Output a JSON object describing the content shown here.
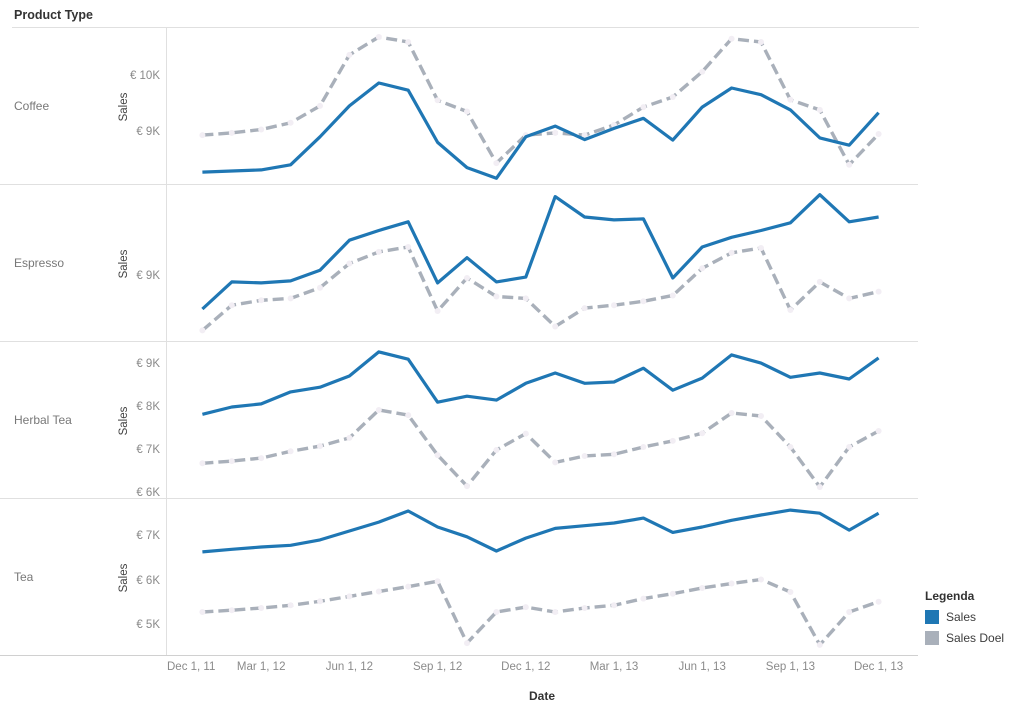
{
  "header": {
    "title": "Product Type"
  },
  "x_axis": {
    "title": "Date",
    "ticks": [
      {
        "label": "Dec 1, 11",
        "m": -1
      },
      {
        "label": "Mar 1, 12",
        "m": 2
      },
      {
        "label": "Jun 1, 12",
        "m": 5
      },
      {
        "label": "Sep 1, 12",
        "m": 8
      },
      {
        "label": "Dec 1, 12",
        "m": 11
      },
      {
        "label": "Mar 1, 13",
        "m": 14
      },
      {
        "label": "Jun 1, 13",
        "m": 17
      },
      {
        "label": "Sep 1, 13",
        "m": 20
      },
      {
        "label": "Dec 1, 13",
        "m": 23
      }
    ]
  },
  "legend": {
    "title": "Legenda",
    "items": [
      {
        "label": "Sales",
        "color": "#1f77b4",
        "style": "solid"
      },
      {
        "label": "Sales Doel",
        "color": "#a9b0ba",
        "style": "dashed"
      }
    ]
  },
  "colors": {
    "sales": "#1f77b4",
    "sales_doel": "#a9b0ba",
    "marker": "#f2eef4",
    "grid": "#e0e0e0",
    "axis_line": "#d0d0d0",
    "text_dark": "#333333",
    "text_gray": "#8a8a8a"
  },
  "chart_data": {
    "type": "line",
    "title": "Sales vs Sales Doel by Product Type",
    "xlabel": "Date",
    "units": "EUR (thousands)",
    "x": [
      "Jan 2012",
      "Feb 2012",
      "Mar 2012",
      "Apr 2012",
      "May 2012",
      "Jun 2012",
      "Jul 2012",
      "Aug 2012",
      "Sep 2012",
      "Oct 2012",
      "Nov 2012",
      "Dec 2012",
      "Jan 2013",
      "Feb 2013",
      "Mar 2013",
      "Apr 2013",
      "May 2013",
      "Jun 2013",
      "Jul 2013",
      "Aug 2013",
      "Sep 2013",
      "Oct 2013",
      "Nov 2013",
      "Dec 2013"
    ],
    "legend_position": "bottom-right",
    "grid": false,
    "panels": [
      {
        "category": "Coffee",
        "y_axis_title": "Sales",
        "y_domain": [
          8.09,
          10.89
        ],
        "y_ticks": [
          {
            "v": 10,
            "label": "€ 10K"
          },
          {
            "v": 9,
            "label": "€ 9K"
          }
        ],
        "series": [
          {
            "name": "Sales",
            "style": "solid",
            "values": [
              8.32,
              8.34,
              8.36,
              8.45,
              8.95,
              9.5,
              9.91,
              9.78,
              8.85,
              8.4,
              8.21,
              8.95,
              9.14,
              8.9,
              9.1,
              9.28,
              8.89,
              9.48,
              9.82,
              9.7,
              9.43,
              8.93,
              8.8,
              9.38
            ]
          },
          {
            "name": "Sales Doel",
            "style": "dashed",
            "values": [
              8.98,
              9.02,
              9.08,
              9.2,
              9.5,
              10.41,
              10.73,
              10.64,
              9.6,
              9.4,
              8.48,
              8.98,
              9.02,
              8.98,
              9.16,
              9.48,
              9.66,
              10.11,
              10.7,
              10.64,
              9.61,
              9.43,
              8.45,
              9.0
            ]
          }
        ]
      },
      {
        "category": "Espresso",
        "y_axis_title": "Sales",
        "y_domain": [
          8.34,
          9.96
        ],
        "y_ticks": [
          {
            "v": 9,
            "label": "€ 9K"
          }
        ],
        "series": [
          {
            "name": "Sales",
            "style": "solid",
            "values": [
              8.68,
              8.96,
              8.95,
              8.97,
              9.08,
              9.39,
              9.49,
              9.58,
              8.95,
              9.21,
              8.96,
              9.01,
              9.84,
              9.63,
              9.6,
              9.61,
              9.0,
              9.32,
              9.42,
              9.49,
              9.57,
              9.86,
              9.58,
              9.63
            ]
          },
          {
            "name": "Sales Doel",
            "style": "dashed",
            "values": [
              8.46,
              8.72,
              8.77,
              8.79,
              8.9,
              9.15,
              9.27,
              9.32,
              8.66,
              9.0,
              8.81,
              8.79,
              8.5,
              8.69,
              8.72,
              8.76,
              8.82,
              9.1,
              9.26,
              9.31,
              8.67,
              8.96,
              8.79,
              8.86
            ]
          }
        ]
      },
      {
        "category": "Herbal Tea",
        "y_axis_title": "Sales",
        "y_domain": [
          5.91,
          9.56
        ],
        "y_ticks": [
          {
            "v": 9,
            "label": "€ 9K"
          },
          {
            "v": 8,
            "label": "€ 8K"
          },
          {
            "v": 7,
            "label": "€ 7K"
          },
          {
            "v": 6,
            "label": "€ 6K"
          }
        ],
        "series": [
          {
            "name": "Sales",
            "style": "solid",
            "values": [
              7.88,
              8.05,
              8.12,
              8.4,
              8.51,
              8.77,
              9.33,
              9.16,
              8.16,
              8.3,
              8.21,
              8.6,
              8.84,
              8.6,
              8.63,
              8.95,
              8.44,
              8.72,
              9.26,
              9.07,
              8.74,
              8.84,
              8.7,
              9.19
            ]
          },
          {
            "name": "Sales Doel",
            "style": "dashed",
            "values": [
              6.74,
              6.79,
              6.86,
              7.02,
              7.14,
              7.33,
              7.98,
              7.86,
              6.93,
              6.21,
              7.05,
              7.43,
              6.76,
              6.91,
              6.95,
              7.12,
              7.26,
              7.44,
              7.91,
              7.84,
              7.12,
              6.19,
              7.12,
              7.49
            ]
          }
        ]
      },
      {
        "category": "Tea",
        "y_axis_title": "Sales",
        "y_domain": [
          4.35,
          7.88
        ],
        "y_ticks": [
          {
            "v": 7,
            "label": "€ 7K"
          },
          {
            "v": 6,
            "label": "€ 6K"
          },
          {
            "v": 5,
            "label": "€ 5K"
          }
        ],
        "series": [
          {
            "name": "Sales",
            "style": "solid",
            "values": [
              6.69,
              6.75,
              6.8,
              6.84,
              6.96,
              7.16,
              7.36,
              7.61,
              7.25,
              7.03,
              6.71,
              7.0,
              7.22,
              7.28,
              7.34,
              7.45,
              7.13,
              7.25,
              7.4,
              7.52,
              7.63,
              7.56,
              7.18,
              7.56
            ]
          },
          {
            "name": "Sales Doel",
            "style": "dashed",
            "values": [
              5.34,
              5.38,
              5.43,
              5.49,
              5.58,
              5.69,
              5.8,
              5.91,
              6.03,
              4.64,
              5.34,
              5.45,
              5.34,
              5.43,
              5.49,
              5.64,
              5.75,
              5.88,
              5.98,
              6.07,
              5.79,
              4.6,
              5.34,
              5.57
            ]
          }
        ]
      }
    ]
  }
}
